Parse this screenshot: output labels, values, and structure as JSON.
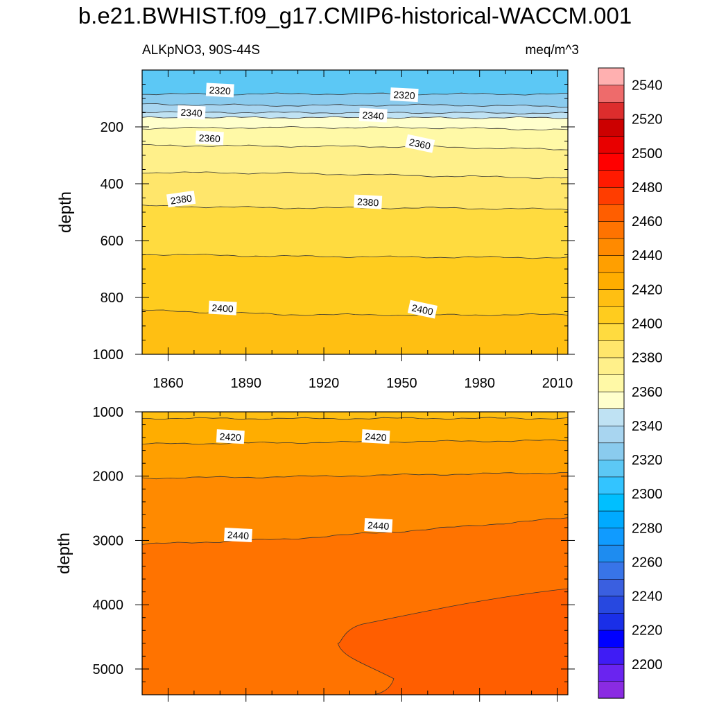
{
  "title": "b.e21.BWHIST.f09_g17.CMIP6-historical-WACCM.001",
  "subtitle_left": "ALKpNO3, 90S-44S",
  "subtitle_right": "meq/m^3",
  "chart_data": [
    {
      "type": "contour",
      "panel": "upper",
      "xlabel": "",
      "ylabel": "depth",
      "xlim": [
        1850,
        2014
      ],
      "ylim": [
        0,
        1000
      ],
      "y_inverted": true,
      "x_ticks": [
        1860,
        1890,
        1920,
        1950,
        1980,
        2010
      ],
      "y_ticks": [
        200,
        400,
        600,
        800,
        1000
      ],
      "contours": [
        {
          "level": 2310,
          "depth": [
            85,
            84,
            84,
            85
          ]
        },
        {
          "level": 2320,
          "depth": [
            120,
            125,
            123,
            128
          ]
        },
        {
          "level": 2330,
          "depth": [
            147,
            150,
            150,
            152
          ]
        },
        {
          "level": 2340,
          "depth": [
            168,
            167,
            168,
            168
          ]
        },
        {
          "level": 2350,
          "depth": [
            205,
            202,
            203,
            210
          ]
        },
        {
          "level": 2360,
          "depth": [
            265,
            268,
            270,
            280
          ]
        },
        {
          "level": 2370,
          "depth": [
            360,
            363,
            372,
            380
          ]
        },
        {
          "level": 2380,
          "depth": [
            478,
            485,
            485,
            490
          ]
        },
        {
          "level": 2390,
          "depth": [
            648,
            655,
            658,
            660
          ]
        },
        {
          "level": 2400,
          "depth": [
            845,
            860,
            862,
            860
          ]
        }
      ],
      "contour_labels": [
        {
          "text": "2320",
          "x": 1880,
          "depth": 72
        },
        {
          "text": "2320",
          "x": 1951,
          "depth": 88
        },
        {
          "text": "2340",
          "x": 1869,
          "depth": 150
        },
        {
          "text": "2340",
          "x": 1939,
          "depth": 160
        },
        {
          "text": "2360",
          "x": 1876,
          "depth": 240
        },
        {
          "text": "2360",
          "x": 1957,
          "depth": 260
        },
        {
          "text": "2380",
          "x": 1865,
          "depth": 455
        },
        {
          "text": "2380",
          "x": 1937,
          "depth": 465
        },
        {
          "text": "2400",
          "x": 1881,
          "depth": 838
        },
        {
          "text": "2400",
          "x": 1958,
          "depth": 843
        }
      ]
    },
    {
      "type": "contour",
      "panel": "lower",
      "xlabel": "",
      "ylabel": "depth",
      "xlim": [
        1850,
        2014
      ],
      "ylim": [
        1000,
        5400
      ],
      "y_inverted": true,
      "y_ticks": [
        1000,
        2000,
        3000,
        4000,
        5000
      ],
      "contours": [
        {
          "level": 2410,
          "depth": [
            1100,
            1105,
            1100,
            1100
          ]
        },
        {
          "level": 2420,
          "depth": [
            1500,
            1480,
            1460,
            1445
          ]
        },
        {
          "level": 2430,
          "depth": [
            2030,
            2010,
            1975,
            1945
          ]
        },
        {
          "level": 2440,
          "depth": [
            3060,
            2980,
            2830,
            2650
          ]
        }
      ],
      "contour_labels": [
        {
          "text": "2420",
          "x": 1884,
          "depth": 1390
        },
        {
          "text": "2420",
          "x": 1940,
          "depth": 1390
        },
        {
          "text": "2440",
          "x": 1887,
          "depth": 2920
        },
        {
          "text": "2440",
          "x": 1941,
          "depth": 2770
        }
      ]
    }
  ],
  "colorbar": {
    "levels": [
      2200,
      2220,
      2240,
      2260,
      2280,
      2300,
      2320,
      2340,
      2360,
      2380,
      2400,
      2420,
      2440,
      2460,
      2480,
      2500,
      2520,
      2540
    ],
    "colors": [
      "#8a2be2",
      "#6a24f0",
      "#3f1cf5",
      "#0000ff",
      "#1a2fe8",
      "#2748e0",
      "#3a5fe0",
      "#3874e8",
      "#1e8cf0",
      "#109bff",
      "#00aaff",
      "#00bfff",
      "#33c4ff",
      "#5cc8f5",
      "#8acbee",
      "#a8d5f0",
      "#bfe2f3",
      "#ffffcc",
      "#fff9a6",
      "#fff08a",
      "#ffe66b",
      "#ffdb3f",
      "#ffcc1e",
      "#ffbf12",
      "#ffad00",
      "#ff9f00",
      "#ff8a00",
      "#ff7300",
      "#ff5e00",
      "#ff3d00",
      "#ff1a00",
      "#ff0000",
      "#e80000",
      "#cc0000",
      "#dd2d2d",
      "#ee6b6b",
      "#ffb0b0"
    ]
  }
}
